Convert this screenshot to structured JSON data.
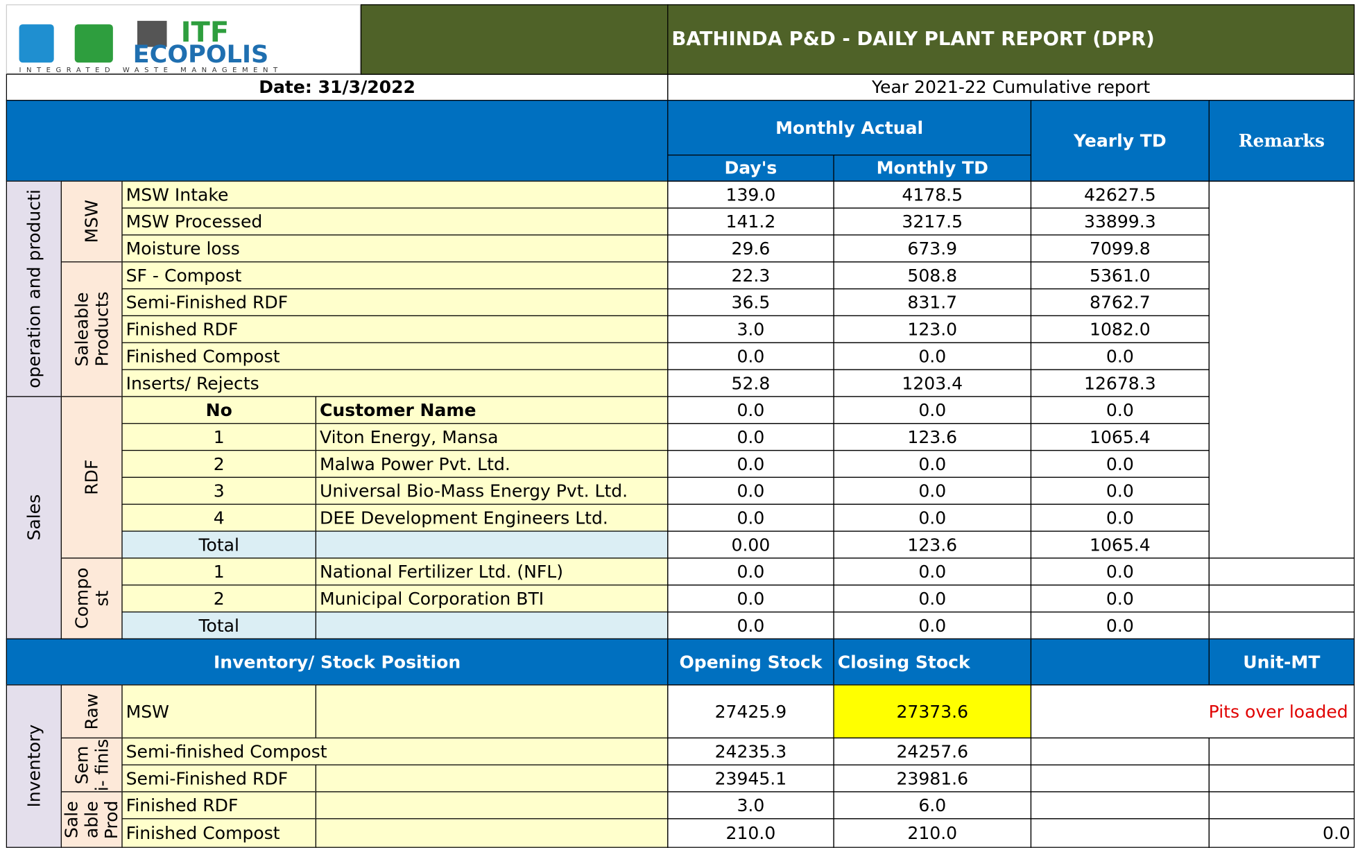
{
  "logo": {
    "brand1": "ITF",
    "brand2": "ECOPOLIS",
    "tagline": "INTEGRATED WASTE MANAGEMENT"
  },
  "header": {
    "title": "BATHINDA P&D - DAILY PLANT REPORT (DPR)",
    "date": "Date: 31/3/2022",
    "cumulative": "Year 2021-22 Cumulative report"
  },
  "columns": {
    "monthly_actual": "Monthly Actual",
    "days": "Day's",
    "monthly_td": "Monthly TD",
    "yearly_td": "Yearly TD",
    "remarks": "Remarks"
  },
  "operation": {
    "group": "operation and producti",
    "subgroups": [
      "MSW",
      "Saleable Products"
    ],
    "rows": [
      [
        "MSW Intake",
        "139.0",
        "4178.5",
        "42627.5"
      ],
      [
        "MSW Processed",
        "141.2",
        "3217.5",
        "33899.3"
      ],
      [
        "Moisture loss",
        "29.6",
        "673.9",
        "7099.8"
      ],
      [
        "SF - Compost",
        "22.3",
        "508.8",
        "5361.0"
      ],
      [
        "Semi-Finished RDF",
        "36.5",
        "831.7",
        "8762.7"
      ],
      [
        "Finished RDF",
        "3.0",
        "123.0",
        "1082.0"
      ],
      [
        "Finished Compost",
        "0.0",
        "0.0",
        "0.0"
      ],
      [
        "Inserts/ Rejects",
        "52.8",
        "1203.4",
        "12678.3"
      ]
    ]
  },
  "sales": {
    "group": "Sales",
    "rdf": {
      "label": "RDF",
      "header": [
        "No",
        "Customer Name",
        "0.0",
        "0.0",
        "0.0"
      ],
      "rows": [
        [
          "1",
          "Viton Energy, Mansa",
          "0.0",
          "123.6",
          "1065.4"
        ],
        [
          "2",
          "Malwa Power Pvt. Ltd.",
          "0.0",
          "0.0",
          "0.0"
        ],
        [
          "3",
          "Universal Bio-Mass Energy Pvt. Ltd.",
          "0.0",
          "0.0",
          "0.0"
        ],
        [
          "4",
          "DEE Development Engineers Ltd.",
          "0.0",
          "0.0",
          "0.0"
        ]
      ],
      "total": [
        "Total",
        "0.00",
        "123.6",
        "1065.4"
      ]
    },
    "compost": {
      "label": "Compo st",
      "rows": [
        [
          "1",
          "National Fertilizer Ltd. (NFL)",
          "0.0",
          "0.0",
          "0.0"
        ],
        [
          "2",
          "Municipal Corporation BTI",
          "0.0",
          "0.0",
          "0.0"
        ]
      ],
      "total": [
        "Total",
        "0.0",
        "0.0",
        "0.0"
      ]
    }
  },
  "inventory": {
    "header": [
      "Inventory/ Stock Position",
      "Opening Stock",
      "Closing Stock",
      "Unit-MT"
    ],
    "group": "Inventory",
    "subgroups": [
      "Raw",
      "Sem i- finis",
      "Sale able Prod"
    ],
    "rows": [
      [
        "MSW",
        "27425.9",
        "27373.6",
        "Pits over loaded"
      ],
      [
        "Semi-finished Compost",
        "24235.3",
        "24257.6"
      ],
      [
        "Semi-Finished RDF",
        "23945.1",
        "23981.6"
      ],
      [
        "Finished RDF",
        "3.0",
        "6.0"
      ],
      [
        "Finished Compost",
        "210.0",
        "210.0",
        "0.0"
      ]
    ]
  }
}
